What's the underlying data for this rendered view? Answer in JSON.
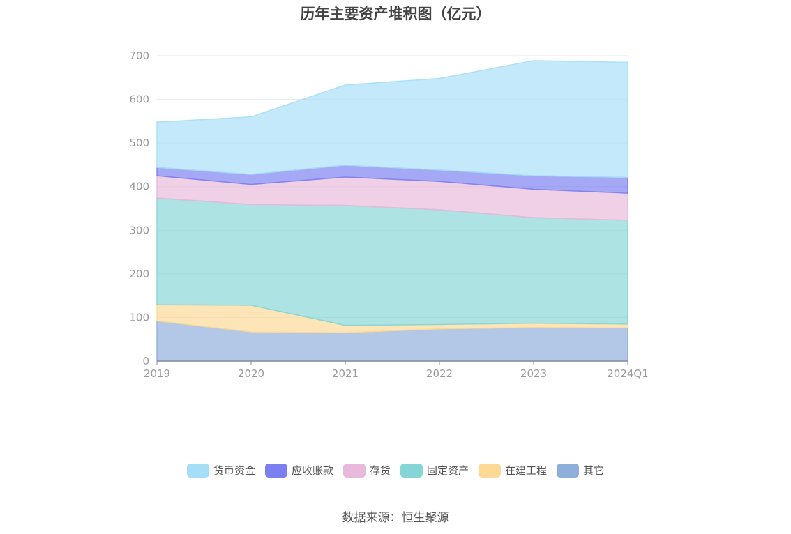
{
  "chart_data": {
    "type": "area",
    "stacked": true,
    "title": "历年主要资产堆积图（亿元）",
    "categories": [
      "2019",
      "2020",
      "2021",
      "2022",
      "2023",
      "2024Q1"
    ],
    "ylim": [
      0,
      700
    ],
    "yticks": [
      0,
      100,
      200,
      300,
      400,
      500,
      600,
      700
    ],
    "grid": true,
    "legend_position": "bottom",
    "series": [
      {
        "name": "其它",
        "color": "#8faedc",
        "values": [
          92,
          67,
          65,
          74,
          77,
          76
        ]
      },
      {
        "name": "在建工程",
        "color": "#fdd996",
        "values": [
          37,
          61,
          17,
          10,
          10,
          9
        ]
      },
      {
        "name": "固定资产",
        "color": "#86d5d6",
        "values": [
          245,
          231,
          275,
          263,
          242,
          238
        ]
      },
      {
        "name": "存货",
        "color": "#e8b9da",
        "values": [
          51,
          46,
          65,
          65,
          65,
          62
        ]
      },
      {
        "name": "应收账款",
        "color": "#7b7ff0",
        "values": [
          19,
          23,
          27,
          26,
          31,
          36
        ]
      },
      {
        "name": "货币资金",
        "color": "#a7def7",
        "values": [
          104,
          132,
          184,
          210,
          264,
          264
        ]
      }
    ],
    "legend_order": [
      "货币资金",
      "应收账款",
      "存货",
      "固定资产",
      "在建工程",
      "其它"
    ]
  },
  "source": "数据来源：恒生聚源"
}
